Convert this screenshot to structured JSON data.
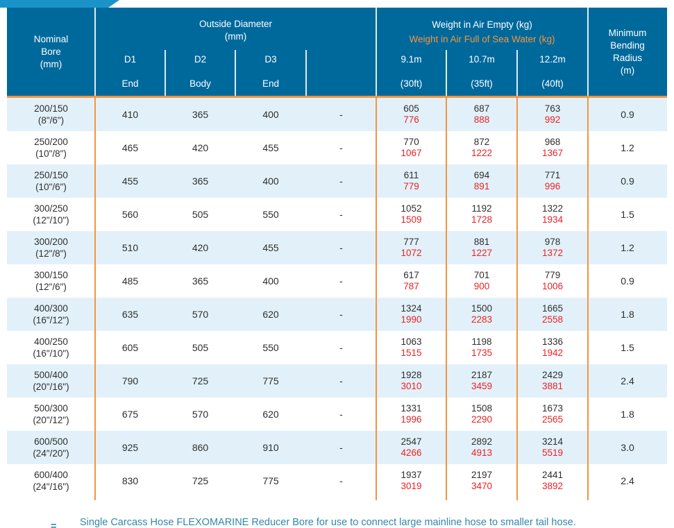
{
  "colors": {
    "header_bg": "#00699c",
    "banner": "#1a93c9",
    "orange": "#f2953f",
    "red": "#ed2024",
    "row_alt": "#e2f1f9",
    "text_dark": "#2e2e2e",
    "footnote_blue": "#3286ad"
  },
  "header": {
    "nominal_bore": {
      "line1": "Nominal",
      "line2": "Bore",
      "line3": "(mm)"
    },
    "outside_diameter": {
      "title": "Outside Diameter",
      "unit": "(mm)",
      "subcols": [
        {
          "id": "D1",
          "pos": "End"
        },
        {
          "id": "D2",
          "pos": "Body"
        },
        {
          "id": "D3",
          "pos": "End"
        },
        {
          "id": "",
          "pos": ""
        }
      ]
    },
    "weight": {
      "title_empty": "Weight in Air Empty (kg)",
      "title_full": "Weight in Air Full of Sea Water (kg)",
      "subcols": [
        {
          "len": "9.1m",
          "ft": "(30ft)"
        },
        {
          "len": "10.7m",
          "ft": "(35ft)"
        },
        {
          "len": "12.2m",
          "ft": "(40ft)"
        }
      ]
    },
    "min_bend": {
      "line1": "Minimum",
      "line2": "Bending",
      "line3": "Radius",
      "line4": "(m)"
    }
  },
  "rows": [
    {
      "bore": "200/150",
      "bore_in": "(8\"/6\")",
      "d1": "410",
      "d2": "365",
      "d3": "400",
      "dash": "-",
      "w": [
        [
          "605",
          "776"
        ],
        [
          "687",
          "888"
        ],
        [
          "763",
          "992"
        ]
      ],
      "mbr": "0.9"
    },
    {
      "bore": "250/200",
      "bore_in": "(10\"/8\")",
      "d1": "465",
      "d2": "420",
      "d3": "455",
      "dash": "-",
      "w": [
        [
          "770",
          "1067"
        ],
        [
          "872",
          "1222"
        ],
        [
          "968",
          "1367"
        ]
      ],
      "mbr": "1.2"
    },
    {
      "bore": "250/150",
      "bore_in": "(10\"/6\")",
      "d1": "455",
      "d2": "365",
      "d3": "400",
      "dash": "-",
      "w": [
        [
          "611",
          "779"
        ],
        [
          "694",
          "891"
        ],
        [
          "771",
          "996"
        ]
      ],
      "mbr": "0.9"
    },
    {
      "bore": "300/250",
      "bore_in": "(12\"/10\")",
      "d1": "560",
      "d2": "505",
      "d3": "550",
      "dash": "-",
      "w": [
        [
          "1052",
          "1509"
        ],
        [
          "1192",
          "1728"
        ],
        [
          "1322",
          "1934"
        ]
      ],
      "mbr": "1.5"
    },
    {
      "bore": "300/200",
      "bore_in": "(12\"/8\")",
      "d1": "510",
      "d2": "420",
      "d3": "455",
      "dash": "-",
      "w": [
        [
          "777",
          "1072"
        ],
        [
          "881",
          "1227"
        ],
        [
          "978",
          "1372"
        ]
      ],
      "mbr": "1.2"
    },
    {
      "bore": "300/150",
      "bore_in": "(12\"/6\")",
      "d1": "485",
      "d2": "365",
      "d3": "400",
      "dash": "-",
      "w": [
        [
          "617",
          "787"
        ],
        [
          "701",
          "900"
        ],
        [
          "779",
          "1006"
        ]
      ],
      "mbr": "0.9"
    },
    {
      "bore": "400/300",
      "bore_in": "(16\"/12\")",
      "d1": "635",
      "d2": "570",
      "d3": "620",
      "dash": "-",
      "w": [
        [
          "1324",
          "1990"
        ],
        [
          "1500",
          "2283"
        ],
        [
          "1665",
          "2558"
        ]
      ],
      "mbr": "1.8"
    },
    {
      "bore": "400/250",
      "bore_in": "(16\"/10\")",
      "d1": "605",
      "d2": "505",
      "d3": "550",
      "dash": "-",
      "w": [
        [
          "1063",
          "1515"
        ],
        [
          "1198",
          "1735"
        ],
        [
          "1336",
          "1942"
        ]
      ],
      "mbr": "1.5"
    },
    {
      "bore": "500/400",
      "bore_in": "(20\"/16\")",
      "d1": "790",
      "d2": "725",
      "d3": "775",
      "dash": "-",
      "w": [
        [
          "1928",
          "3010"
        ],
        [
          "2187",
          "3459"
        ],
        [
          "2429",
          "3881"
        ]
      ],
      "mbr": "2.4"
    },
    {
      "bore": "500/300",
      "bore_in": "(20\"/12\")",
      "d1": "675",
      "d2": "570",
      "d3": "620",
      "dash": "-",
      "w": [
        [
          "1331",
          "1996"
        ],
        [
          "1508",
          "2290"
        ],
        [
          "1673",
          "2565"
        ]
      ],
      "mbr": "1.8"
    },
    {
      "bore": "600/500",
      "bore_in": "(24\"/20\")",
      "d1": "925",
      "d2": "860",
      "d3": "910",
      "dash": "-",
      "w": [
        [
          "2547",
          "4266"
        ],
        [
          "2892",
          "4913"
        ],
        [
          "3214",
          "5519"
        ]
      ],
      "mbr": "3.0"
    },
    {
      "bore": "600/400",
      "bore_in": "(24\"/16\")",
      "d1": "830",
      "d2": "725",
      "d3": "775",
      "dash": "-",
      "w": [
        [
          "1937",
          "3019"
        ],
        [
          "2197",
          "3470"
        ],
        [
          "2441",
          "3892"
        ]
      ],
      "mbr": "2.4"
    }
  ],
  "footnote": {
    "bullet": "=",
    "text": "Single Carcass Hose FLEXOMARINE Reducer Bore for use to connect large mainline hose to smaller tail hose."
  }
}
